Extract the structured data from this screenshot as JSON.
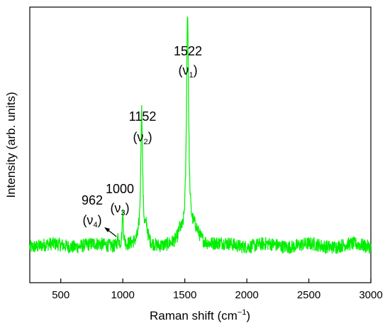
{
  "chart_data": {
    "type": "line",
    "xlabel": "Raman shift (cm",
    "xlabel_sup": "−1",
    "xlabel_close": ")",
    "ylabel": "Intensity (arb. units)",
    "xlim": [
      250,
      3000
    ],
    "ylim": [
      0,
      1
    ],
    "xticks": [
      500,
      1000,
      1500,
      2000,
      2500,
      3000
    ],
    "yticks_shown": false,
    "grid": false,
    "legend": "none",
    "line_color": "#00ee00",
    "series": [
      {
        "baseline": 0.135,
        "peaks": [
          {
            "x": 962,
            "height": 0.03,
            "width": 8
          },
          {
            "x": 1000,
            "height": 0.12,
            "width": 6
          },
          {
            "x": 1152,
            "height": 0.48,
            "width": 9
          },
          {
            "x": 1190,
            "height": 0.05,
            "width": 14
          },
          {
            "x": 1460,
            "height": 0.03,
            "width": 15
          },
          {
            "x": 1522,
            "height": 0.82,
            "width": 10
          },
          {
            "x": 1580,
            "height": 0.06,
            "width": 50
          }
        ]
      }
    ],
    "annotations": [
      {
        "value": "1522",
        "mode": "ν",
        "mode_sub": "1",
        "peak_x": 1522
      },
      {
        "value": "1152",
        "mode": "ν",
        "mode_sub": "2",
        "peak_x": 1152
      },
      {
        "value": "1000",
        "mode": "ν",
        "mode_sub": "3",
        "peak_x": 1000
      },
      {
        "value": "962",
        "mode": "ν",
        "mode_sub": "4",
        "peak_x": 962,
        "arrow": true
      }
    ]
  }
}
